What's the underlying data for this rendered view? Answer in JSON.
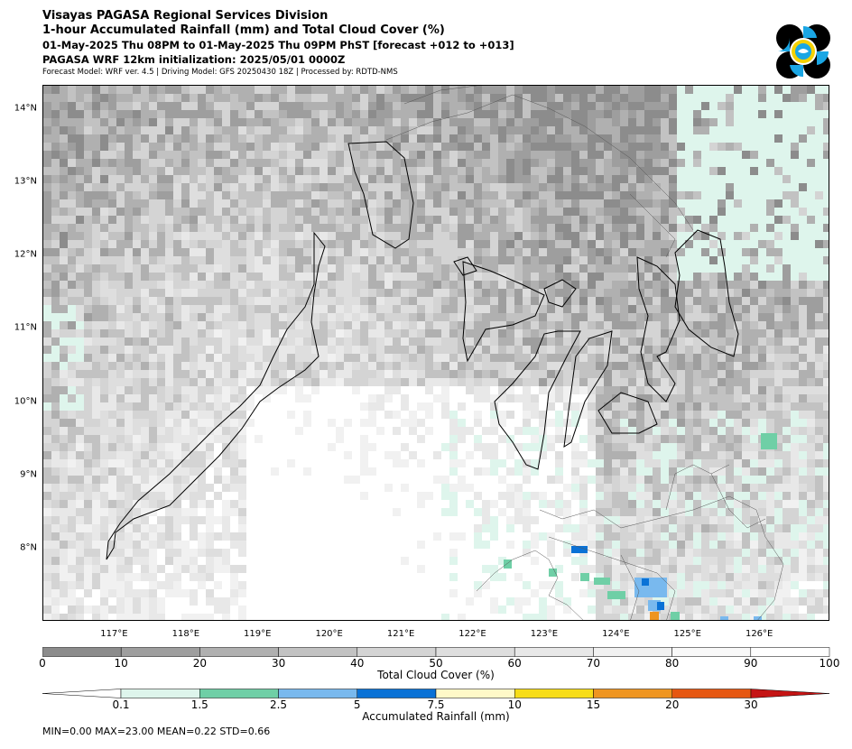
{
  "header": {
    "line1": "Visayas PAGASA Regional Services Division",
    "line2": "1-hour Accumulated Rainfall (mm) and Total Cloud Cover (%)",
    "line3": "01-May-2025 Thu 08PM to 01-May-2025 Thu 09PM PhST [forecast +012 to +013]",
    "line4": "PAGASA WRF 12km initialization: 2025/05/01 0000Z",
    "line5": "Forecast Model: WRF ver. 4.5 | Driving Model: GFS 20250430 18Z | Processed by: RDTD-NMS"
  },
  "logo": {
    "icon": "pagasa-logo-icon",
    "colors": [
      "#000000",
      "#1aa6e4",
      "#f5d100"
    ]
  },
  "map": {
    "lat_labels": [
      "14°N",
      "13°N",
      "12°N",
      "11°N",
      "10°N",
      "9°N",
      "8°N"
    ],
    "lat_values": [
      14,
      13,
      12,
      11,
      10,
      9,
      8
    ],
    "lon_labels": [
      "117°E",
      "118°E",
      "119°E",
      "120°E",
      "121°E",
      "122°E",
      "123°E",
      "124°E",
      "125°E",
      "126°E"
    ],
    "lon_values": [
      117,
      118,
      119,
      120,
      121,
      122,
      123,
      124,
      125,
      126
    ],
    "extent": {
      "lon": [
        116.0,
        126.98
      ],
      "lat": [
        7.0,
        14.32
      ]
    }
  },
  "cloud_colorbar": {
    "ticks": [
      "0",
      "10",
      "20",
      "30",
      "40",
      "50",
      "60",
      "70",
      "80",
      "90",
      "100"
    ],
    "colors": [
      "#8c8c8c",
      "#9e9e9e",
      "#b0b0b0",
      "#c2c2c2",
      "#d4d4d4",
      "#dedede",
      "#e8e8e8",
      "#f1f1f1",
      "#f8f8f8",
      "#ffffff"
    ],
    "label": "Total Cloud Cover (%)"
  },
  "rain_colorbar": {
    "ticks": [
      "0.1",
      "1.5",
      "2.5",
      "5",
      "7.5",
      "10",
      "15",
      "20",
      "30"
    ],
    "colors": [
      "#ffffff",
      "#def5ec",
      "#6fcfa6",
      "#79b9ee",
      "#0a72d6",
      "#fff9c8",
      "#f7dd17",
      "#ef9520",
      "#e65711",
      "#c51414"
    ],
    "label": "Accumulated Rainfall (mm)"
  },
  "stats": "MIN=0.00   MAX=23.00   MEAN=0.22   STD=0.66"
}
